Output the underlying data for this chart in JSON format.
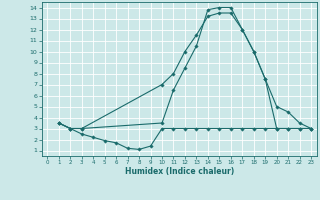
{
  "xlabel": "Humidex (Indice chaleur)",
  "bg_color": "#cce8e8",
  "grid_color": "#ffffff",
  "line_color": "#1a6b6b",
  "xlim": [
    -0.5,
    23.5
  ],
  "ylim": [
    0.5,
    14.5
  ],
  "xticks": [
    0,
    1,
    2,
    3,
    4,
    5,
    6,
    7,
    8,
    9,
    10,
    11,
    12,
    13,
    14,
    15,
    16,
    17,
    18,
    19,
    20,
    21,
    22,
    23
  ],
  "yticks": [
    1,
    2,
    3,
    4,
    5,
    6,
    7,
    8,
    9,
    10,
    11,
    12,
    13,
    14
  ],
  "line1_x": [
    1,
    2,
    3,
    4,
    5,
    6,
    7,
    8,
    9,
    10,
    11,
    12,
    13,
    14,
    15,
    16,
    17,
    18,
    19,
    20,
    21,
    22,
    23
  ],
  "line1_y": [
    3.5,
    3.0,
    2.5,
    2.2,
    1.9,
    1.7,
    1.2,
    1.1,
    1.4,
    3.0,
    3.0,
    3.0,
    3.0,
    3.0,
    3.0,
    3.0,
    3.0,
    3.0,
    3.0,
    3.0,
    3.0,
    3.0,
    3.0
  ],
  "line2_x": [
    1,
    2,
    3,
    10,
    11,
    12,
    13,
    14,
    15,
    16,
    17,
    18,
    19,
    20,
    21,
    22,
    23
  ],
  "line2_y": [
    3.5,
    3.0,
    3.0,
    7.0,
    8.0,
    10.0,
    11.5,
    13.2,
    13.5,
    13.5,
    12.0,
    10.0,
    7.5,
    3.0,
    3.0,
    3.0,
    3.0
  ],
  "line3_x": [
    1,
    2,
    3,
    10,
    11,
    12,
    13,
    14,
    15,
    16,
    17,
    18,
    19,
    20,
    21,
    22,
    23
  ],
  "line3_y": [
    3.5,
    3.0,
    3.0,
    3.5,
    6.5,
    8.5,
    10.5,
    13.8,
    14.0,
    14.0,
    12.0,
    10.0,
    7.5,
    5.0,
    4.5,
    3.5,
    3.0
  ]
}
